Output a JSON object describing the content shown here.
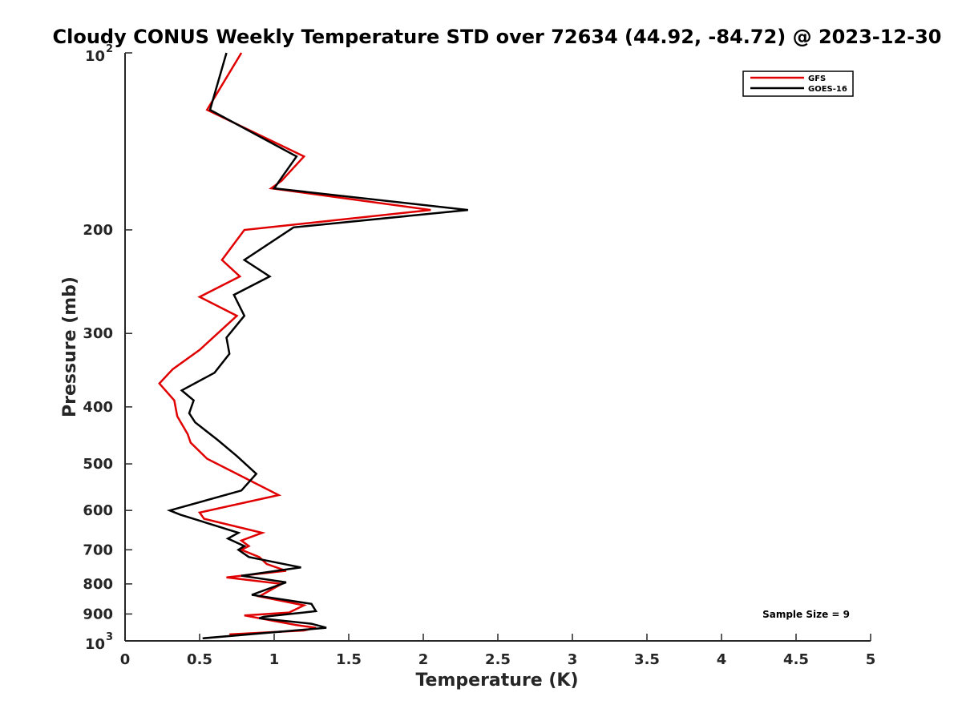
{
  "chart_data": {
    "type": "line",
    "title": "Cloudy CONUS Weekly Temperature STD over 72634 (44.92, -84.72) @ 2023-12-30",
    "xlabel": "Temperature (K)",
    "ylabel": "Pressure (mb)",
    "xlim": [
      0,
      5
    ],
    "ylim": [
      100,
      1000
    ],
    "y_scale": "log",
    "y_reversed": true,
    "grid": false,
    "legend_position": "top-right",
    "x_ticks": [
      0,
      0.5,
      1,
      1.5,
      2,
      2.5,
      3,
      3.5,
      4,
      4.5,
      5
    ],
    "x_tick_labels": [
      "0",
      "0.5",
      "1",
      "1.5",
      "2",
      "2.5",
      "3",
      "3.5",
      "4",
      "4.5",
      "5"
    ],
    "y_ticks": [
      200,
      300,
      400,
      500,
      600,
      700,
      800,
      900
    ],
    "y_tick_labels": [
      "200",
      "300",
      "400",
      "500",
      "600",
      "700",
      "800",
      "900"
    ],
    "y_end_labels": {
      "top_base": "10",
      "top_exp": "2",
      "bottom_base": "10",
      "bottom_exp": "3"
    },
    "series": [
      {
        "name": "GFS",
        "color": "#e00000",
        "points": [
          [
            0.78,
            100
          ],
          [
            0.55,
            125
          ],
          [
            1.2,
            150
          ],
          [
            1.05,
            165
          ],
          [
            0.98,
            170
          ],
          [
            2.05,
            185
          ],
          [
            0.8,
            200
          ],
          [
            0.65,
            225
          ],
          [
            0.77,
            240
          ],
          [
            0.5,
            260
          ],
          [
            0.75,
            280
          ],
          [
            0.5,
            320
          ],
          [
            0.32,
            345
          ],
          [
            0.23,
            365
          ],
          [
            0.33,
            390
          ],
          [
            0.35,
            415
          ],
          [
            0.42,
            445
          ],
          [
            0.44,
            460
          ],
          [
            0.55,
            490
          ],
          [
            0.75,
            520
          ],
          [
            1.03,
            565
          ],
          [
            0.5,
            605
          ],
          [
            0.53,
            620
          ],
          [
            0.92,
            655
          ],
          [
            0.78,
            675
          ],
          [
            0.83,
            690
          ],
          [
            0.78,
            700
          ],
          [
            0.9,
            720
          ],
          [
            0.95,
            740
          ],
          [
            1.08,
            760
          ],
          [
            0.68,
            780
          ],
          [
            1.05,
            800
          ],
          [
            0.9,
            840
          ],
          [
            1.2,
            870
          ],
          [
            1.1,
            895
          ],
          [
            0.8,
            905
          ],
          [
            1.0,
            925
          ],
          [
            1.15,
            940
          ],
          [
            1.28,
            950
          ],
          [
            1.2,
            960
          ],
          [
            0.7,
            975
          ]
        ]
      },
      {
        "name": "GOES-16",
        "color": "#000000",
        "points": [
          [
            0.68,
            100
          ],
          [
            0.57,
            125
          ],
          [
            1.15,
            150
          ],
          [
            1.05,
            163
          ],
          [
            1.0,
            170
          ],
          [
            2.3,
            185
          ],
          [
            1.13,
            198
          ],
          [
            0.8,
            225
          ],
          [
            0.97,
            240
          ],
          [
            0.73,
            258
          ],
          [
            0.8,
            280
          ],
          [
            0.68,
            305
          ],
          [
            0.7,
            325
          ],
          [
            0.6,
            350
          ],
          [
            0.38,
            375
          ],
          [
            0.46,
            390
          ],
          [
            0.43,
            410
          ],
          [
            0.47,
            425
          ],
          [
            0.62,
            455
          ],
          [
            0.75,
            485
          ],
          [
            0.88,
            520
          ],
          [
            0.78,
            555
          ],
          [
            0.3,
            600
          ],
          [
            0.37,
            610
          ],
          [
            0.76,
            655
          ],
          [
            0.69,
            670
          ],
          [
            0.8,
            690
          ],
          [
            0.76,
            700
          ],
          [
            0.83,
            720
          ],
          [
            1.18,
            750
          ],
          [
            0.78,
            775
          ],
          [
            1.08,
            795
          ],
          [
            0.85,
            835
          ],
          [
            1.25,
            865
          ],
          [
            1.28,
            890
          ],
          [
            0.93,
            910
          ],
          [
            0.9,
            915
          ],
          [
            1.25,
            935
          ],
          [
            1.35,
            950
          ],
          [
            0.52,
            990
          ]
        ]
      }
    ],
    "annotation": "Sample Size = 9"
  }
}
